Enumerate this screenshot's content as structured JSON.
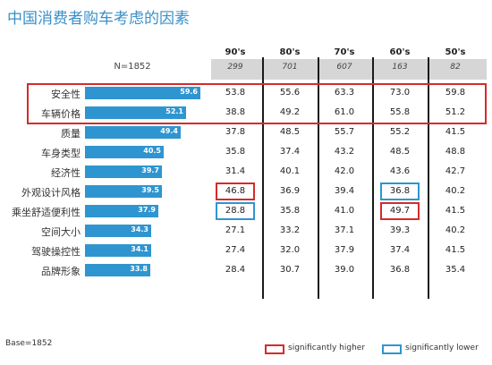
{
  "title": "中国消费者购车考虑的因素",
  "n_label": "N=1852",
  "base_label": "Base=1852",
  "legend": {
    "higher": "significantly higher",
    "lower": "significantly lower",
    "higher_color": "#d52b2b",
    "lower_color": "#2f95d0"
  },
  "chart_data": {
    "type": "table",
    "title": "中国消费者购车考虑的因素",
    "bar_max": 60,
    "factors": [
      "安全性",
      "车辆价格",
      "质量",
      "车身类型",
      "经济性",
      "外观设计风格",
      "乘坐舒适便利性",
      "空间大小",
      "驾驶操控性",
      "品牌形象"
    ],
    "totals": [
      59.6,
      52.1,
      49.4,
      40.5,
      39.7,
      39.5,
      37.9,
      34.3,
      34.1,
      33.8
    ],
    "columns": [
      "90's",
      "80's",
      "70's",
      "60's",
      "50's"
    ],
    "counts": [
      "299",
      "701",
      "607",
      "163",
      "82"
    ],
    "values": [
      [
        "53.8",
        "55.6",
        "63.3",
        "73.0",
        "59.8"
      ],
      [
        "38.8",
        "49.2",
        "61.0",
        "55.8",
        "51.2"
      ],
      [
        "37.8",
        "48.5",
        "55.7",
        "55.2",
        "41.5"
      ],
      [
        "35.8",
        "37.4",
        "43.2",
        "48.5",
        "48.8"
      ],
      [
        "31.4",
        "40.1",
        "42.0",
        "43.6",
        "42.7"
      ],
      [
        "46.8",
        "36.9",
        "39.4",
        "36.8",
        "40.2"
      ],
      [
        "28.8",
        "35.8",
        "41.0",
        "49.7",
        "41.5"
      ],
      [
        "27.1",
        "33.2",
        "37.1",
        "39.3",
        "40.2"
      ],
      [
        "27.4",
        "32.0",
        "37.9",
        "37.4",
        "41.5"
      ],
      [
        "28.4",
        "30.7",
        "39.0",
        "36.8",
        "35.4"
      ]
    ],
    "highlights": [
      {
        "row": 5,
        "col": 0,
        "kind": "higher"
      },
      {
        "row": 5,
        "col": 3,
        "kind": "lower"
      },
      {
        "row": 6,
        "col": 0,
        "kind": "lower"
      },
      {
        "row": 6,
        "col": 3,
        "kind": "higher"
      }
    ],
    "top_rows_outlined": [
      0,
      1
    ]
  }
}
